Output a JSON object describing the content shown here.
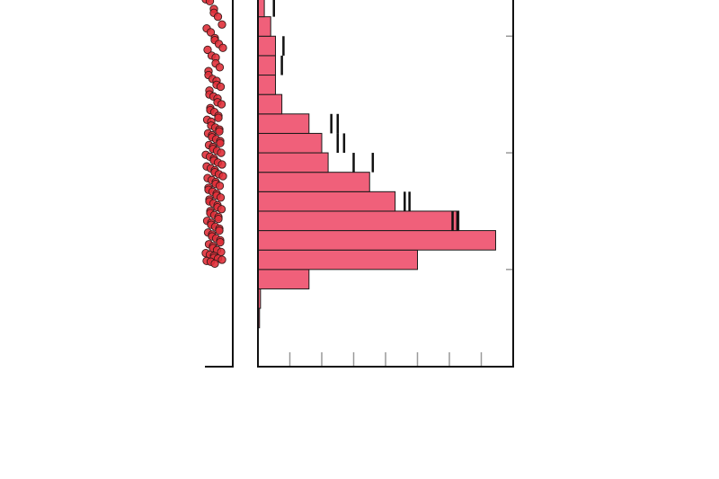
{
  "chart_data": [
    {
      "type": "scatter",
      "title": "",
      "xlabel": "",
      "ylabel": "",
      "grid": false,
      "marker_color": "#e0303a",
      "marker_edge": "#3a1a1a",
      "y_range": [
        0.5,
        10
      ],
      "points_note_free": true,
      "y": [
        9.95,
        9.9,
        9.7,
        9.6,
        9.5,
        9.3,
        9.2,
        9.1,
        8.95,
        8.9,
        8.8,
        8.7,
        8.65,
        8.5,
        8.45,
        8.3,
        8.2,
        8.1,
        8.0,
        7.9,
        7.85,
        7.75,
        7.7,
        7.6,
        7.5,
        7.45,
        7.4,
        7.3,
        7.25,
        7.15,
        7.1,
        7.05,
        6.95,
        6.9,
        6.85,
        6.8,
        6.7,
        6.65,
        6.6,
        6.55,
        6.5,
        6.45,
        6.4,
        6.35,
        6.3,
        6.25,
        6.2,
        6.15,
        6.1,
        6.05,
        6.0,
        5.95,
        5.9,
        5.85,
        5.8,
        5.75,
        5.7,
        5.65,
        5.6,
        5.55,
        5.5,
        5.45,
        5.4,
        5.35,
        5.3,
        5.25,
        5.2,
        5.15,
        5.1,
        5.05,
        5.0,
        4.95,
        4.9,
        4.85,
        4.8,
        4.75,
        4.7,
        4.65,
        4.6,
        4.55,
        4.5,
        4.45,
        4.4,
        4.35,
        4.3,
        4.25,
        4.2,
        4.15,
        4.1,
        4.05,
        4.0,
        3.95,
        3.9,
        3.85,
        3.8,
        3.75,
        3.7,
        3.65,
        3.6,
        3.55,
        3.5,
        3.45,
        3.42,
        3.38,
        3.35,
        3.3,
        3.28,
        3.25,
        3.22,
        3.2,
        3.15
      ]
    },
    {
      "type": "bar",
      "orientation": "horizontal",
      "title": "",
      "xlabel": "",
      "ylabel": "",
      "grid": false,
      "bar_color": "#f0607a",
      "bar_edge": "#1a1a1a",
      "y_range": [
        0.5,
        10
      ],
      "x_range": [
        0,
        8
      ],
      "x_ticks": [
        1,
        2,
        3,
        4,
        5,
        6,
        7
      ],
      "y_ticks": [
        3,
        6,
        9
      ],
      "bins": [
        {
          "y0": 1.5,
          "y1": 2.0,
          "value": 0.05
        },
        {
          "y0": 2.0,
          "y1": 2.5,
          "value": 0.08
        },
        {
          "y0": 2.5,
          "y1": 3.0,
          "value": 1.6
        },
        {
          "y0": 3.0,
          "y1": 3.5,
          "value": 5.0
        },
        {
          "y0": 3.5,
          "y1": 4.0,
          "value": 7.45
        },
        {
          "y0": 4.0,
          "y1": 4.5,
          "value": 6.3
        },
        {
          "y0": 4.5,
          "y1": 5.0,
          "value": 4.3
        },
        {
          "y0": 5.0,
          "y1": 5.5,
          "value": 3.5
        },
        {
          "y0": 5.5,
          "y1": 6.0,
          "value": 2.2
        },
        {
          "y0": 6.0,
          "y1": 6.5,
          "value": 2.0
        },
        {
          "y0": 6.5,
          "y1": 7.0,
          "value": 1.6
        },
        {
          "y0": 7.0,
          "y1": 7.5,
          "value": 0.75
        },
        {
          "y0": 7.5,
          "y1": 8.0,
          "value": 0.55
        },
        {
          "y0": 8.0,
          "y1": 8.5,
          "value": 0.55
        },
        {
          "y0": 8.5,
          "y1": 9.0,
          "value": 0.55
        },
        {
          "y0": 9.0,
          "y1": 9.5,
          "value": 0.4
        },
        {
          "y0": 9.5,
          "y1": 10.0,
          "value": 0.2
        }
      ],
      "overlay_outlines": [
        {
          "y0": 4.0,
          "y1": 4.5,
          "value": 6.1
        },
        {
          "y0": 4.0,
          "y1": 4.5,
          "value": 6.25
        },
        {
          "y0": 4.5,
          "y1": 5.0,
          "value": 4.6
        },
        {
          "y0": 4.5,
          "y1": 5.0,
          "value": 4.75
        },
        {
          "y0": 5.5,
          "y1": 6.0,
          "value": 3.0
        },
        {
          "y0": 5.5,
          "y1": 6.0,
          "value": 3.6
        },
        {
          "y0": 6.0,
          "y1": 6.5,
          "value": 2.5
        },
        {
          "y0": 6.0,
          "y1": 6.5,
          "value": 2.7
        },
        {
          "y0": 6.5,
          "y1": 7.0,
          "value": 2.3
        },
        {
          "y0": 6.5,
          "y1": 7.0,
          "value": 2.5
        },
        {
          "y0": 8.0,
          "y1": 8.5,
          "value": 0.75
        },
        {
          "y0": 8.5,
          "y1": 9.0,
          "value": 0.8
        },
        {
          "y0": 9.5,
          "y1": 10.0,
          "value": 0.5
        }
      ]
    }
  ]
}
